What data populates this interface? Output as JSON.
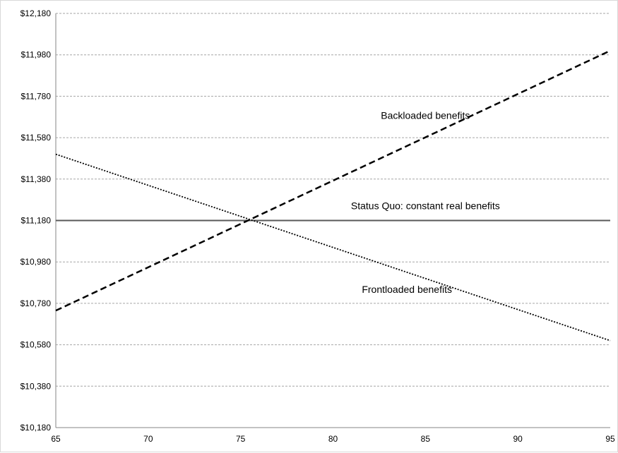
{
  "chart_data": {
    "type": "line",
    "title": "",
    "xlabel": "",
    "ylabel": "",
    "xlim": [
      65,
      95
    ],
    "ylim": [
      10180,
      12180
    ],
    "x_ticks": [
      65,
      70,
      75,
      80,
      85,
      90,
      95
    ],
    "x_tick_labels": [
      "65",
      "70",
      "75",
      "80",
      "85",
      "90",
      "95"
    ],
    "y_ticks": [
      10180,
      10380,
      10580,
      10780,
      10980,
      11180,
      11380,
      11580,
      11780,
      11980,
      12180
    ],
    "y_tick_labels": [
      "$10,180",
      "$10,380",
      "$10,580",
      "$10,780",
      "$10,980",
      "$11,180",
      "$11,380",
      "$11,580",
      "$11,780",
      "$11,980",
      "$12,180"
    ],
    "grid": "horizontal dashed",
    "legend": "none",
    "series": [
      {
        "name": "Status Quo: constant real benefits",
        "style": "solid",
        "color": "#595959",
        "x": [
          65,
          95
        ],
        "y": [
          11180,
          11180
        ]
      },
      {
        "name": "Backloaded benefits",
        "style": "dashed",
        "color": "#000000",
        "x": [
          65,
          95
        ],
        "y": [
          10745,
          12000
        ]
      },
      {
        "name": "Frontloaded benefits",
        "style": "dotted",
        "color": "#000000",
        "x": [
          65,
          95
        ],
        "y": [
          11500,
          10600
        ]
      }
    ],
    "annotations": [
      {
        "text": "Backloaded benefits",
        "x": 85,
        "y": 11670
      },
      {
        "text": "Status Quo: constant real benefits",
        "x": 85,
        "y": 11235
      },
      {
        "text": "Frontloaded benefits",
        "x": 84,
        "y": 10830
      }
    ]
  }
}
